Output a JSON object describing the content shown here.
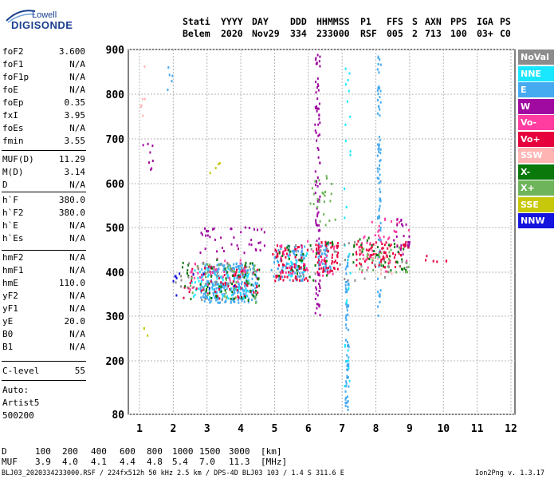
{
  "logo": {
    "line1": "Lowell",
    "line2": "DIGISONDE"
  },
  "header": {
    "labels": [
      "Stati",
      "YYYY",
      "DAY",
      "DDD",
      "HHMMSS",
      "P1",
      "FFS",
      "S",
      "AXN",
      "PPS",
      "IGA",
      "PS"
    ],
    "values": [
      "Belem",
      "2020",
      "Nov29",
      "334",
      "233000",
      "RSF",
      "005",
      "2",
      "713",
      "100",
      "03+",
      "C0"
    ]
  },
  "parameters": [
    {
      "name": "foF2",
      "value": "3.600"
    },
    {
      "name": "foF1",
      "value": "N/A"
    },
    {
      "name": "foF1p",
      "value": "N/A"
    },
    {
      "name": "foE",
      "value": "N/A"
    },
    {
      "name": "foEp",
      "value": "0.35"
    },
    {
      "name": "fxI",
      "value": "3.95"
    },
    {
      "name": "foEs",
      "value": "N/A"
    },
    {
      "name": "fmin",
      "value": "3.55"
    },
    {
      "name": "MUF(D)",
      "value": "11.29"
    },
    {
      "name": "M(D)",
      "value": "3.14"
    },
    {
      "name": "D",
      "value": "N/A"
    },
    {
      "name": "h`F",
      "value": "380.0"
    },
    {
      "name": "h`F2",
      "value": "380.0"
    },
    {
      "name": "h`E",
      "value": "N/A"
    },
    {
      "name": "h`Es",
      "value": "N/A"
    },
    {
      "name": "hmF2",
      "value": "N/A"
    },
    {
      "name": "hmF1",
      "value": "N/A"
    },
    {
      "name": "hmE",
      "value": "110.0"
    },
    {
      "name": "yF2",
      "value": "N/A"
    },
    {
      "name": "yF1",
      "value": "N/A"
    },
    {
      "name": "yE",
      "value": "20.0"
    },
    {
      "name": "B0",
      "value": "N/A"
    },
    {
      "name": "B1",
      "value": "N/A"
    },
    {
      "name": "C-level",
      "value": "55"
    }
  ],
  "auto": {
    "line1": "Auto:",
    "line2": "Artist5",
    "line3": "500200"
  },
  "legend": [
    {
      "label": "NoVal",
      "bg": "#8c8c8c",
      "fg": "#ffffff"
    },
    {
      "label": "NNE",
      "bg": "#19e6ff",
      "fg": "#ffffff"
    },
    {
      "label": "E",
      "bg": "#46aaf0",
      "fg": "#ffffff"
    },
    {
      "label": "W",
      "bg": "#a00aa0",
      "fg": "#ffffff"
    },
    {
      "label": "Vo-",
      "bg": "#ff3ca0",
      "fg": "#ffffff"
    },
    {
      "label": "Vo+",
      "bg": "#e6003c",
      "fg": "#ffffff"
    },
    {
      "label": "SSW",
      "bg": "#ffb4b4",
      "fg": "#ffffff"
    },
    {
      "label": "X-",
      "bg": "#0a780a",
      "fg": "#ffffff"
    },
    {
      "label": "X+",
      "bg": "#6eb45a",
      "fg": "#ffffff"
    },
    {
      "label": "SSE",
      "bg": "#c8c80a",
      "fg": "#ffffff"
    },
    {
      "label": "NNW",
      "bg": "#1414dc",
      "fg": "#ffffff"
    }
  ],
  "footer": {
    "d_label": "D",
    "d_values": [
      "100",
      "200",
      "400",
      "600",
      "800",
      "1000",
      "1500",
      "3000"
    ],
    "d_unit": "[km]",
    "muf_label": "MUF",
    "muf_values": [
      "3.9",
      "4.0",
      "4.1",
      "4.4",
      "4.8",
      "5.4",
      "7.0",
      "11.3"
    ],
    "muf_unit": "[MHz]",
    "file_info": "BLJ03_2020334233000.RSF / 224fx512h 50 kHz 2.5 km / DPS-4D BLJ03 103 / 1.4 S 311.6 E",
    "version": "Ion2Png v. 1.3.17"
  },
  "chart_data": {
    "type": "scatter",
    "title": "",
    "xlabel": "",
    "ylabel": "",
    "xlim": [
      0.8,
      12.5
    ],
    "ylim": [
      80,
      900
    ],
    "x_ticks": [
      1,
      2,
      3,
      4,
      5,
      6,
      7,
      8,
      9,
      10,
      11,
      12
    ],
    "y_ticks": [
      80,
      200,
      300,
      400,
      500,
      600,
      700,
      800,
      900
    ],
    "grid": true,
    "legend_placement": "right",
    "series": [
      {
        "legend_index": 2,
        "clusters": [
          {
            "f": [
              2.8,
              4.5
            ],
            "h": [
              330,
              420
            ],
            "n": 260
          },
          {
            "f": [
              4.9,
              5.9
            ],
            "h": [
              380,
              460
            ],
            "n": 90
          },
          {
            "f": [
              6.3,
              6.7
            ],
            "h": [
              400,
              470
            ],
            "n": 40
          },
          {
            "f": [
              7.1,
              7.2
            ],
            "h": [
              90,
              450
            ],
            "n": 70
          },
          {
            "f": [
              8.05,
              8.15
            ],
            "h": [
              300,
              900
            ],
            "n": 80
          },
          {
            "f": [
              1.8,
              2.0
            ],
            "h": [
              800,
              880
            ],
            "n": 5
          }
        ]
      },
      {
        "legend_index": 1,
        "clusters": [
          {
            "f": [
              2.5,
              4.3
            ],
            "h": [
              340,
              410
            ],
            "n": 70
          },
          {
            "f": [
              5.4,
              6.0
            ],
            "h": [
              390,
              450
            ],
            "n": 25
          },
          {
            "f": [
              7.05,
              7.25
            ],
            "h": [
              120,
              860
            ],
            "n": 30
          }
        ]
      },
      {
        "legend_index": 5,
        "clusters": [
          {
            "f": [
              2.3,
              4.5
            ],
            "h": [
              340,
              420
            ],
            "n": 70
          },
          {
            "f": [
              4.9,
              6.0
            ],
            "h": [
              380,
              460
            ],
            "n": 70
          },
          {
            "f": [
              6.2,
              6.9
            ],
            "h": [
              400,
              470
            ],
            "n": 60
          },
          {
            "f": [
              7.4,
              9.0
            ],
            "h": [
              410,
              470
            ],
            "n": 80
          },
          {
            "f": [
              9.4,
              10.1
            ],
            "h": [
              420,
              440
            ],
            "n": 6
          }
        ]
      },
      {
        "legend_index": 4,
        "clusters": [
          {
            "f": [
              2.5,
              4.3
            ],
            "h": [
              350,
              430
            ],
            "n": 40
          },
          {
            "f": [
              5.0,
              6.8
            ],
            "h": [
              390,
              470
            ],
            "n": 35
          },
          {
            "f": [
              7.5,
              9.0
            ],
            "h": [
              400,
              520
            ],
            "n": 40
          }
        ]
      },
      {
        "legend_index": 3,
        "clusters": [
          {
            "f": [
              2.8,
              4.8
            ],
            "h": [
              440,
              500
            ],
            "n": 40
          },
          {
            "f": [
              6.2,
              6.35
            ],
            "h": [
              300,
              890
            ],
            "n": 90
          },
          {
            "f": [
              8.5,
              9.0
            ],
            "h": [
              440,
              520
            ],
            "n": 20
          },
          {
            "f": [
              1.1,
              1.4
            ],
            "h": [
              600,
              700
            ],
            "n": 8
          }
        ]
      },
      {
        "legend_index": 7,
        "clusters": [
          {
            "f": [
              2.2,
              4.6
            ],
            "h": [
              330,
              430
            ],
            "n": 55
          },
          {
            "f": [
              5.0,
              6.8
            ],
            "h": [
              380,
              470
            ],
            "n": 30
          },
          {
            "f": [
              7.3,
              8.9
            ],
            "h": [
              400,
              480
            ],
            "n": 35
          }
        ]
      },
      {
        "legend_index": 8,
        "clusters": [
          {
            "f": [
              2.5,
              4.5
            ],
            "h": [
              330,
              420
            ],
            "n": 35
          },
          {
            "f": [
              6.0,
              6.8
            ],
            "h": [
              500,
              620
            ],
            "n": 25
          },
          {
            "f": [
              7.5,
              9.0
            ],
            "h": [
              400,
              470
            ],
            "n": 25
          }
        ]
      },
      {
        "legend_index": 0,
        "clusters": [
          {
            "f": [
              2.0,
              4.5
            ],
            "h": [
              330,
              420
            ],
            "n": 30
          },
          {
            "f": [
              5.0,
              9.0
            ],
            "h": [
              380,
              470
            ],
            "n": 30
          }
        ]
      },
      {
        "legend_index": 6,
        "clusters": [
          {
            "f": [
              1.0,
              1.2
            ],
            "h": [
              750,
              870
            ],
            "n": 6
          },
          {
            "f": [
              7.5,
              8.9
            ],
            "h": [
              390,
              450
            ],
            "n": 10
          }
        ]
      },
      {
        "legend_index": 9,
        "clusters": [
          {
            "f": [
              3.0,
              3.4
            ],
            "h": [
              620,
              650
            ],
            "n": 4
          },
          {
            "f": [
              1.1,
              1.25
            ],
            "h": [
              250,
              280
            ],
            "n": 3
          }
        ]
      },
      {
        "legend_index": 10,
        "clusters": [
          {
            "f": [
              2.0,
              4.0
            ],
            "h": [
              340,
              400
            ],
            "n": 10
          }
        ]
      }
    ]
  }
}
